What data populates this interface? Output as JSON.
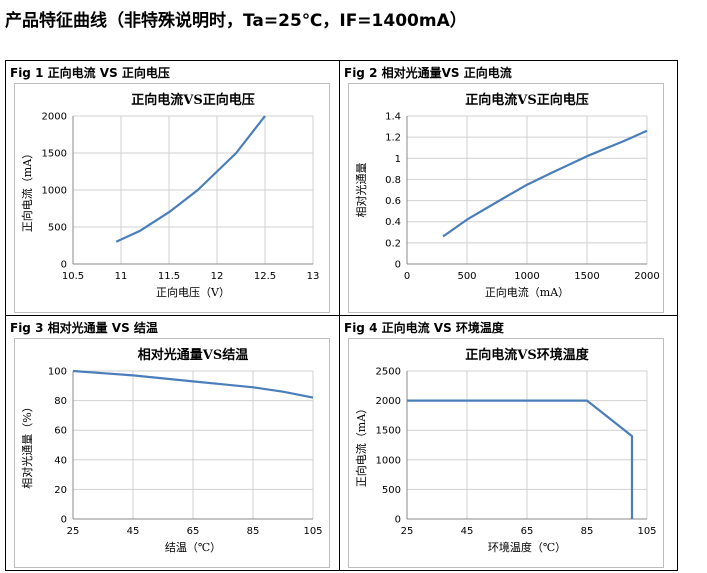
{
  "heading": "产品特征曲线（非特殊说明时，Ta=25℃，IF=1400mA）",
  "panels": [
    {
      "label": "Fig 1  正向电流  VS  正向电压"
    },
    {
      "label": "Fig 2  相对光通量VS  正向电流"
    },
    {
      "label": "Fig 3  相对光通量  VS  结温"
    },
    {
      "label": "Fig 4  正向电流  VS  环境温度"
    }
  ],
  "colors": {
    "line": "#4a7ebb",
    "grid": "#d0d0d0",
    "axis": "#888888"
  },
  "chart_data": [
    {
      "type": "line",
      "title": "正向电流VS正向电压",
      "xlabel": "正向电压（V）",
      "ylabel": "正向电流（mA）",
      "xlim": [
        10.5,
        13
      ],
      "ylim": [
        0,
        2000
      ],
      "xticks": [
        "10.5",
        "11",
        "11.5",
        "12",
        "12.5",
        "13"
      ],
      "yticks": [
        "0",
        "500",
        "1000",
        "1500",
        "2000"
      ],
      "grid": true,
      "series": [
        {
          "x": [
            10.95,
            11.2,
            11.5,
            11.8,
            12.0,
            12.2,
            12.5
          ],
          "y": [
            300,
            450,
            700,
            1000,
            1250,
            1500,
            2000
          ]
        }
      ]
    },
    {
      "type": "line",
      "title": "正向电流VS正向电压",
      "xlabel": "正向电流（mA）",
      "ylabel": "相对光通量",
      "xlim": [
        0,
        2000
      ],
      "ylim": [
        0,
        1.4
      ],
      "xticks": [
        "0",
        "500",
        "1000",
        "1500",
        "2000"
      ],
      "yticks": [
        "0",
        "0.2",
        "0.4",
        "0.6",
        "0.8",
        "1",
        "1.2",
        "1.4"
      ],
      "grid": true,
      "series": [
        {
          "x": [
            300,
            500,
            800,
            1000,
            1200,
            1500,
            1800,
            2000
          ],
          "y": [
            0.26,
            0.42,
            0.62,
            0.75,
            0.86,
            1.02,
            1.16,
            1.26
          ]
        }
      ]
    },
    {
      "type": "line",
      "title": "相对光通量VS结温",
      "xlabel": "结温（℃）",
      "ylabel": "相对光通量（%）",
      "xlim": [
        25,
        105
      ],
      "ylim": [
        0,
        100
      ],
      "xticks": [
        "25",
        "45",
        "65",
        "85",
        "105"
      ],
      "yticks": [
        "0",
        "20",
        "40",
        "60",
        "80",
        "100"
      ],
      "grid": true,
      "series": [
        {
          "x": [
            25,
            35,
            45,
            55,
            65,
            75,
            85,
            95,
            105
          ],
          "y": [
            100,
            98.5,
            97,
            95,
            93,
            91,
            89,
            86,
            82
          ]
        }
      ]
    },
    {
      "type": "line",
      "title": "正向电流VS环境温度",
      "xlabel": "环境温度（℃）",
      "ylabel": "正向电流（mA）",
      "xlim": [
        25,
        105
      ],
      "ylim": [
        0,
        2500
      ],
      "xticks": [
        "25",
        "45",
        "65",
        "85",
        "105"
      ],
      "yticks": [
        "0",
        "500",
        "1000",
        "1500",
        "2000",
        "2500"
      ],
      "grid": true,
      "series": [
        {
          "x": [
            25,
            85,
            100,
            100
          ],
          "y": [
            2000,
            2000,
            1400,
            0
          ]
        }
      ]
    }
  ]
}
